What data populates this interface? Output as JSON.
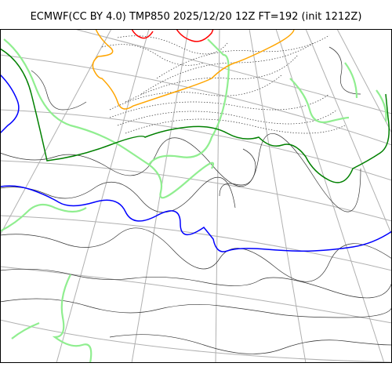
{
  "title": "ECMWF(CC BY 4.0) TMP850 2025/12/20 12Z FT=192 (init 1212Z)",
  "colors": {
    "coast": "#333333",
    "grid": "#b0b0b0",
    "contour_lightgreen": "#90ee90",
    "contour_green": "#008000",
    "contour_blue": "#0000ff",
    "contour_orange": "#ffa500",
    "contour_red": "#ff0000"
  }
}
